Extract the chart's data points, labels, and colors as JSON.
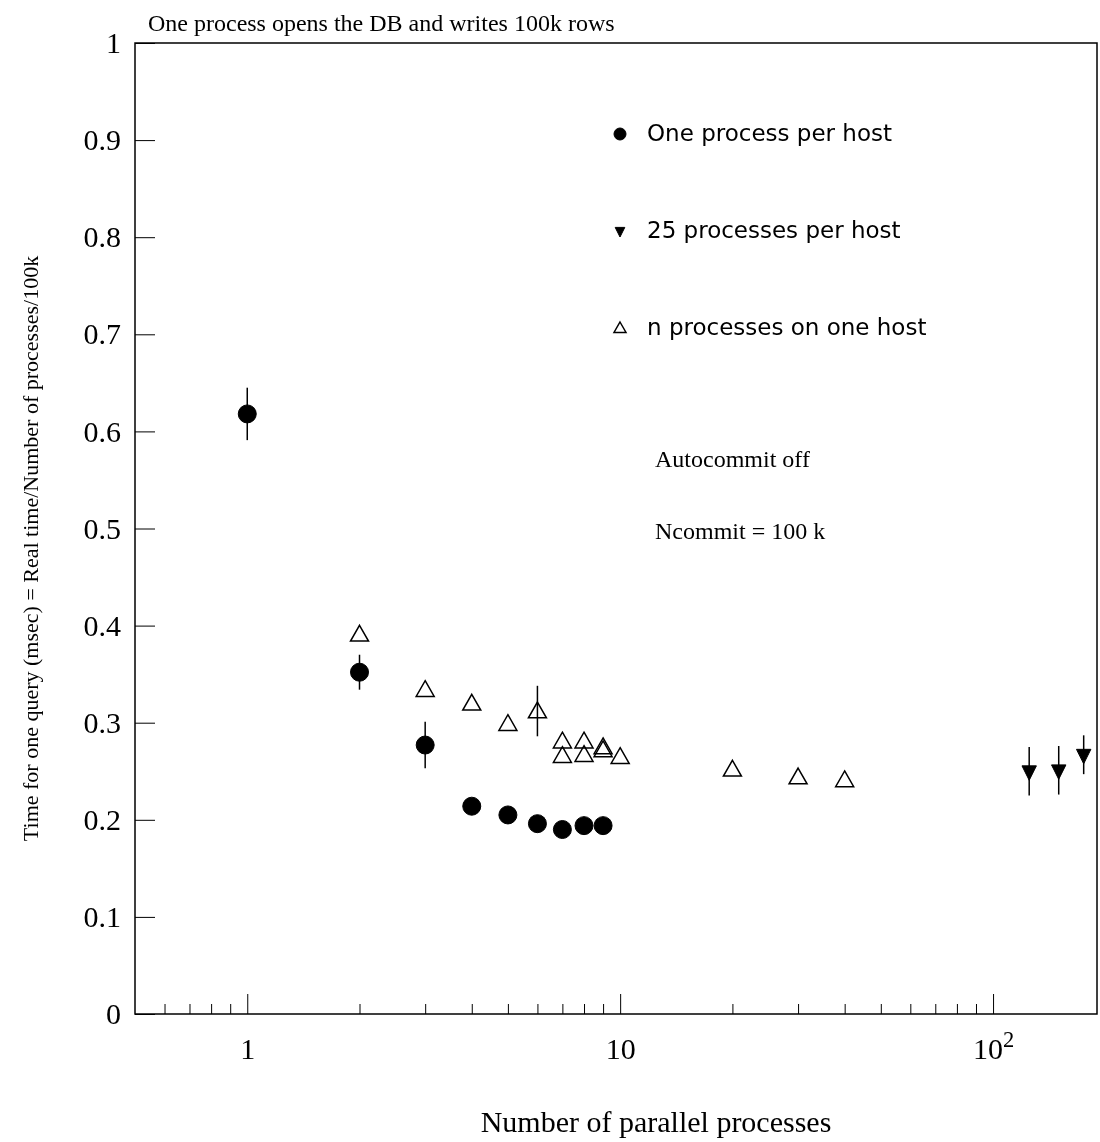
{
  "chart_data": {
    "type": "scatter",
    "title": "One process opens the DB and writes 100k rows",
    "xlabel": "Number of parallel processes",
    "ylabel": "Time for one query (msec) = Real time/Number of processes/100k",
    "log": "x",
    "xlim": [
      0.5,
      190
    ],
    "ylim": [
      0,
      1
    ],
    "xticks": [
      {
        "value": 0.6,
        "label": null
      },
      {
        "value": 0.7,
        "label": null
      },
      {
        "value": 0.8,
        "label": null
      },
      {
        "value": 0.9,
        "label": null
      },
      1,
      {
        "value": 2,
        "label": null
      },
      {
        "value": 3,
        "label": null
      },
      {
        "value": 4,
        "label": null
      },
      {
        "value": 5,
        "label": null
      },
      {
        "value": 6,
        "label": null
      },
      {
        "value": 7,
        "label": null
      },
      {
        "value": 8,
        "label": null
      },
      {
        "value": 9,
        "label": null
      },
      10,
      {
        "value": 20,
        "label": null
      },
      {
        "value": 30,
        "label": null
      },
      {
        "value": 40,
        "label": null
      },
      {
        "value": 50,
        "label": null
      },
      {
        "value": 60,
        "label": null
      },
      {
        "value": 70,
        "label": null
      },
      {
        "value": 80,
        "label": null
      },
      {
        "value": 90,
        "label": null
      },
      {
        "value": 100,
        "label": "10$^{2}$"
      }
    ],
    "yticks": [
      0,
      0.1,
      0.2,
      0.3,
      0.4,
      0.5,
      0.6,
      0.7,
      0.8,
      0.9,
      1
    ],
    "legend": "top right",
    "grid": false,
    "series": [
      {
        "name": "One process per host",
        "color": "#000000",
        "marker": "circle",
        "x": [
          1,
          2,
          3,
          4,
          5,
          6,
          7,
          8,
          9
        ],
        "values": [
          0.618,
          0.352,
          0.277,
          0.214,
          0.205,
          0.196,
          0.19,
          0.194,
          0.194
        ],
        "errors": [
          0.027,
          0.018,
          0.024,
          null,
          null,
          null,
          null,
          null,
          null
        ]
      },
      {
        "name": "25 processes per host",
        "color": "#000000",
        "marker": "triangle",
        "x": [
          125,
          150,
          175
        ],
        "values": [
          0.25,
          0.251,
          0.267
        ],
        "errors": [
          0.025,
          0.025,
          0.02
        ]
      },
      {
        "name": "n processes on one host",
        "color": "#000000",
        "marker": "triangle",
        "x": [
          2,
          3,
          4,
          5,
          6,
          7,
          7,
          8,
          8,
          9,
          9,
          10,
          20,
          30,
          40
        ],
        "values": [
          0.391,
          0.334,
          0.32,
          0.299,
          0.312,
          0.281,
          0.266,
          0.281,
          0.267,
          0.275,
          0.272,
          0.265,
          0.252,
          0.244,
          0.241
        ],
        "errors": [
          null,
          null,
          null,
          null,
          0.026,
          null,
          null,
          null,
          null,
          null,
          null,
          null,
          null,
          null,
          null
        ]
      }
    ],
    "annotations": [
      "Autocommit off",
      "Ncommit = 100 k"
    ]
  }
}
